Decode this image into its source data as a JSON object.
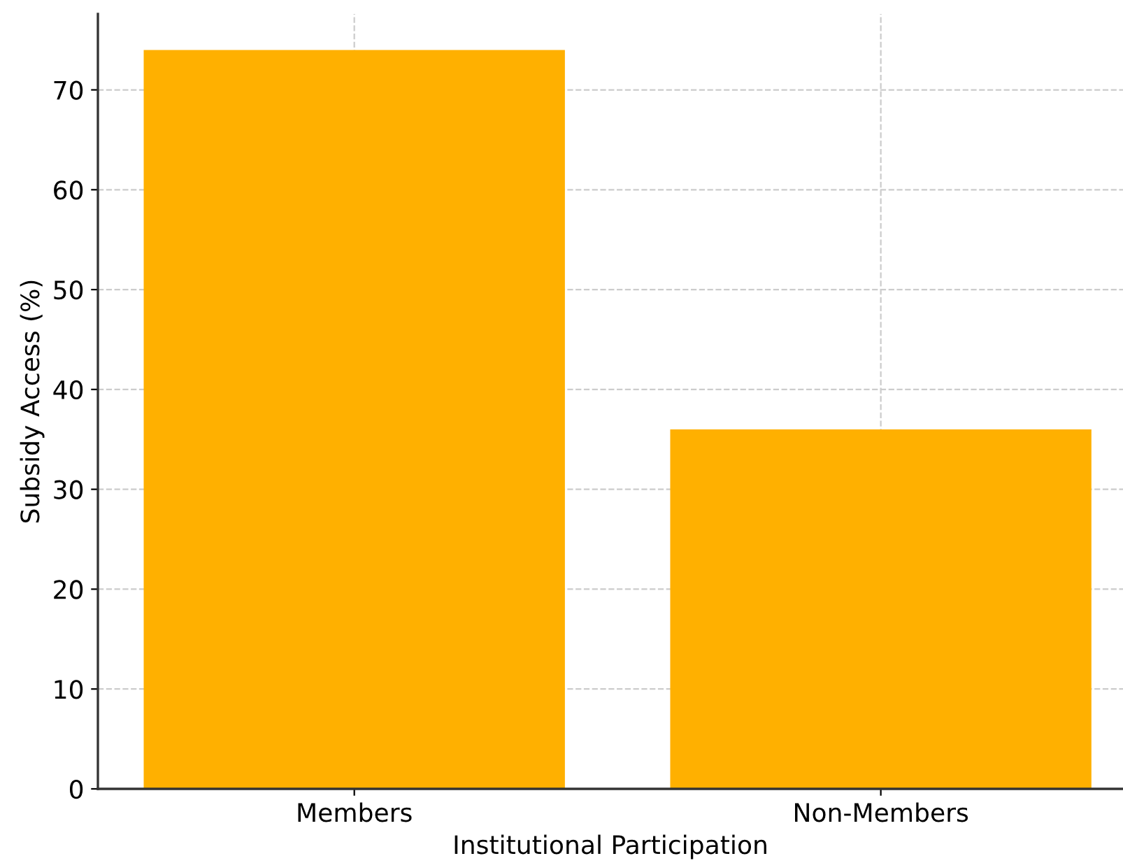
{
  "chart_data": {
    "type": "bar",
    "xlabel": "Institutional Participation",
    "ylabel": "Subsidy Access (%)",
    "categories": [
      "Members",
      "Non-Members"
    ],
    "values": [
      74,
      36
    ],
    "color": "#ffb000",
    "ylim": [
      0,
      77.6
    ],
    "yticks": [
      0,
      10,
      20,
      30,
      40,
      50,
      60,
      70
    ],
    "grid": true
  }
}
